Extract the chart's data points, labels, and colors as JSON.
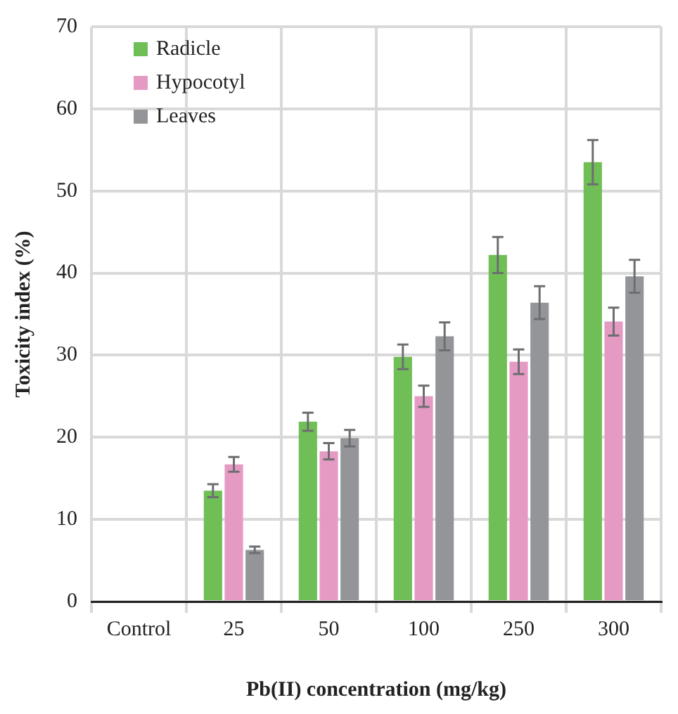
{
  "chart_data": {
    "type": "bar",
    "xlabel": "Pb(II) concentration (mg/kg)",
    "ylabel": "Toxicity index (%)",
    "categories": [
      "Control",
      "25",
      "50",
      "100",
      "250",
      "300"
    ],
    "series": [
      {
        "name": "Radicle",
        "color": "#70bf56",
        "values": [
          null,
          13.5,
          21.9,
          29.8,
          42.2,
          53.5
        ],
        "errors": [
          null,
          0.8,
          1.1,
          1.5,
          2.2,
          2.7
        ]
      },
      {
        "name": "Hypocotyl",
        "color": "#e59ac3",
        "values": [
          null,
          16.7,
          18.3,
          25.0,
          29.2,
          34.1
        ],
        "errors": [
          null,
          0.9,
          1.0,
          1.3,
          1.5,
          1.7
        ]
      },
      {
        "name": "Leaves",
        "color": "#939598",
        "values": [
          null,
          6.3,
          19.9,
          32.3,
          36.4,
          39.6
        ],
        "errors": [
          null,
          0.4,
          1.0,
          1.7,
          2.0,
          2.0
        ]
      }
    ],
    "ylim": [
      0,
      70
    ],
    "yticks": [
      0,
      10,
      20,
      30,
      40,
      50,
      60,
      70
    ],
    "grid": true,
    "legend": "top left"
  }
}
